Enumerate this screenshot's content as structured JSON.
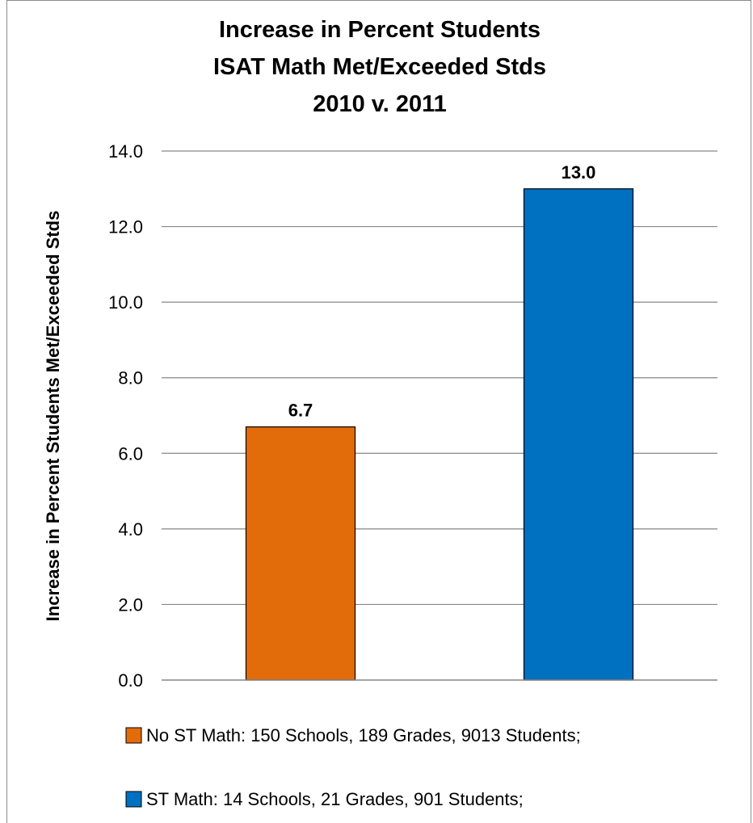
{
  "chart_data": {
    "type": "bar",
    "title_lines": [
      "Increase in Percent Students",
      "ISAT Math Met/Exceeded Stds",
      "2010 v. 2011"
    ],
    "ylabel": "Increase in Percent Students Met/Exceeded Stds",
    "xlabel": "",
    "ylim": [
      0,
      14
    ],
    "yticks": [
      "0.0",
      "2.0",
      "4.0",
      "6.0",
      "8.0",
      "10.0",
      "12.0",
      "14.0"
    ],
    "grid": true,
    "legend_position": "bottom",
    "series": [
      {
        "name": "No ST Math: 150 Schools, 189 Grades, 9013 Students;",
        "value": 6.7,
        "label": "6.7",
        "color": "#e36c0a"
      },
      {
        "name": "ST Math: 14 Schools, 21 Grades, 901 Students;",
        "value": 13.0,
        "label": "13.0",
        "color": "#0070c0"
      }
    ]
  }
}
